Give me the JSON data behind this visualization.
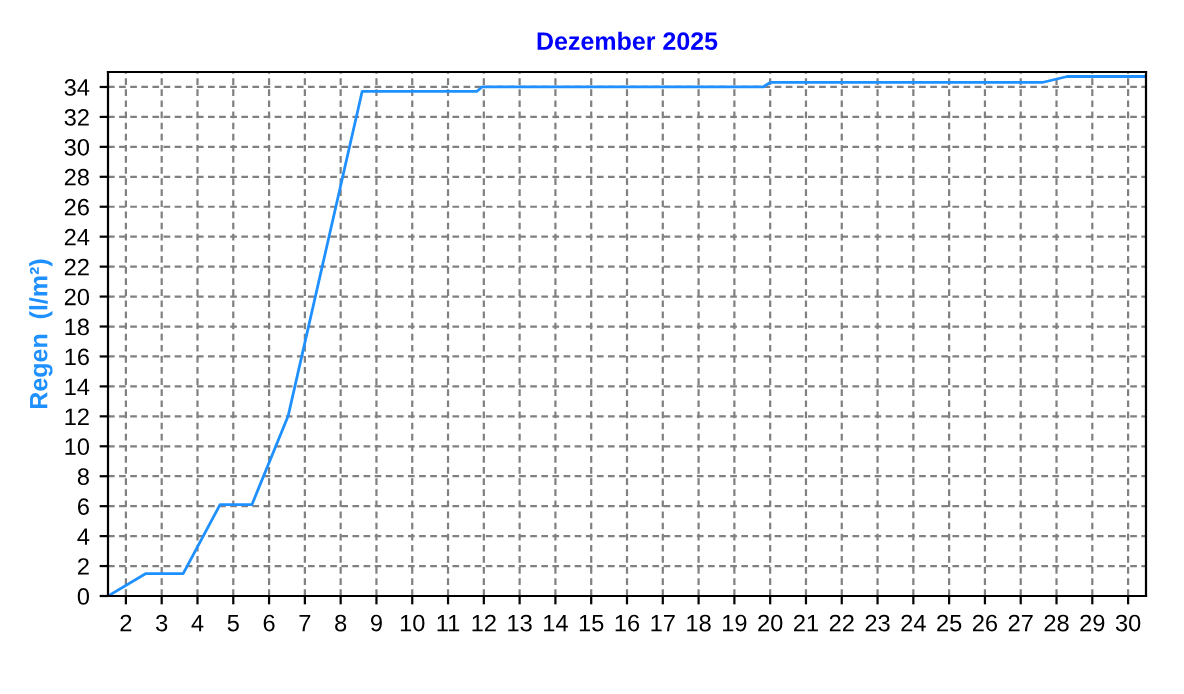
{
  "chart_data": {
    "type": "line",
    "title": "Dezember 2025",
    "ylabel": "Regen  (l/m²)",
    "x": [
      1.5,
      2.56,
      3.6,
      4.63,
      5.52,
      6.53,
      8.6,
      11.8,
      11.95,
      19.8,
      20.0,
      27.6,
      28.3,
      30.5
    ],
    "series": [
      {
        "color": "#1e90ff",
        "values": [
          0,
          1.5,
          1.5,
          6.1,
          6.1,
          12,
          33.7,
          33.7,
          34.0,
          34.0,
          34.3,
          34.3,
          34.7,
          34.7
        ]
      }
    ],
    "xlim": [
      1.5,
      30.5
    ],
    "xticks": [
      2,
      3,
      4,
      5,
      6,
      7,
      8,
      9,
      10,
      11,
      12,
      13,
      14,
      15,
      16,
      17,
      18,
      19,
      20,
      21,
      22,
      23,
      24,
      25,
      26,
      27,
      28,
      29,
      30
    ],
    "ylim": [
      0,
      35
    ],
    "yticks": [
      0,
      2,
      4,
      6,
      8,
      10,
      12,
      14,
      16,
      18,
      20,
      22,
      24,
      26,
      28,
      30,
      32,
      34
    ],
    "grid": true,
    "legend": false,
    "marker": "none",
    "line_style": "solid"
  }
}
